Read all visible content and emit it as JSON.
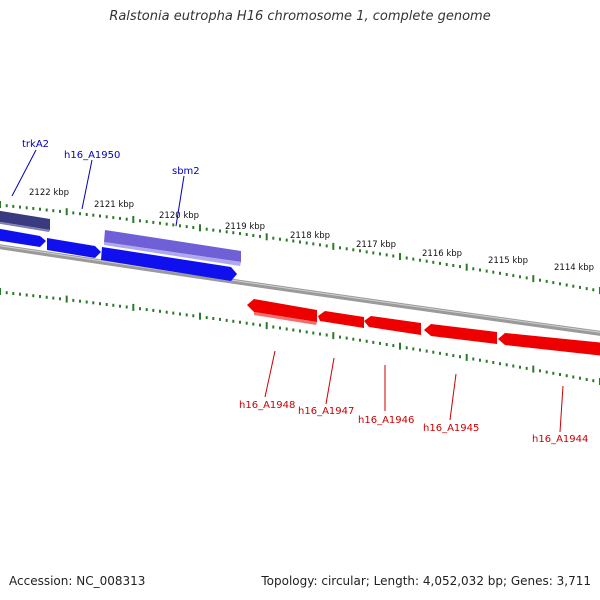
{
  "title": "Ralstonia eutropha H16 chromosome 1, complete genome",
  "footer": {
    "accession": "Accession: NC_008313",
    "summary": "Topology: circular; Length: 4,052,032 bp; Genes: 3,711"
  },
  "colors": {
    "forward_gene": "#1010ee",
    "forward_gene_light": "#7060d8",
    "forward_gene_dark": "#3a3a80",
    "reverse_gene": "#ee0000",
    "backbone": "#888888",
    "tick": "#2a7a2a"
  },
  "tick_labels": [
    "2122 kbp",
    "2121 kbp",
    "2120 kbp",
    "2119 kbp",
    "2118 kbp",
    "2117 kbp",
    "2116 kbp",
    "2115 kbp",
    "2114 kbp"
  ],
  "forward_genes": [
    {
      "name": "trkA2"
    },
    {
      "name": "h16_A1950"
    },
    {
      "name": "sbm2"
    }
  ],
  "reverse_genes": [
    {
      "name": "h16_A1948"
    },
    {
      "name": "h16_A1947"
    },
    {
      "name": "h16_A1946"
    },
    {
      "name": "h16_A1945"
    },
    {
      "name": "h16_A1944"
    }
  ]
}
